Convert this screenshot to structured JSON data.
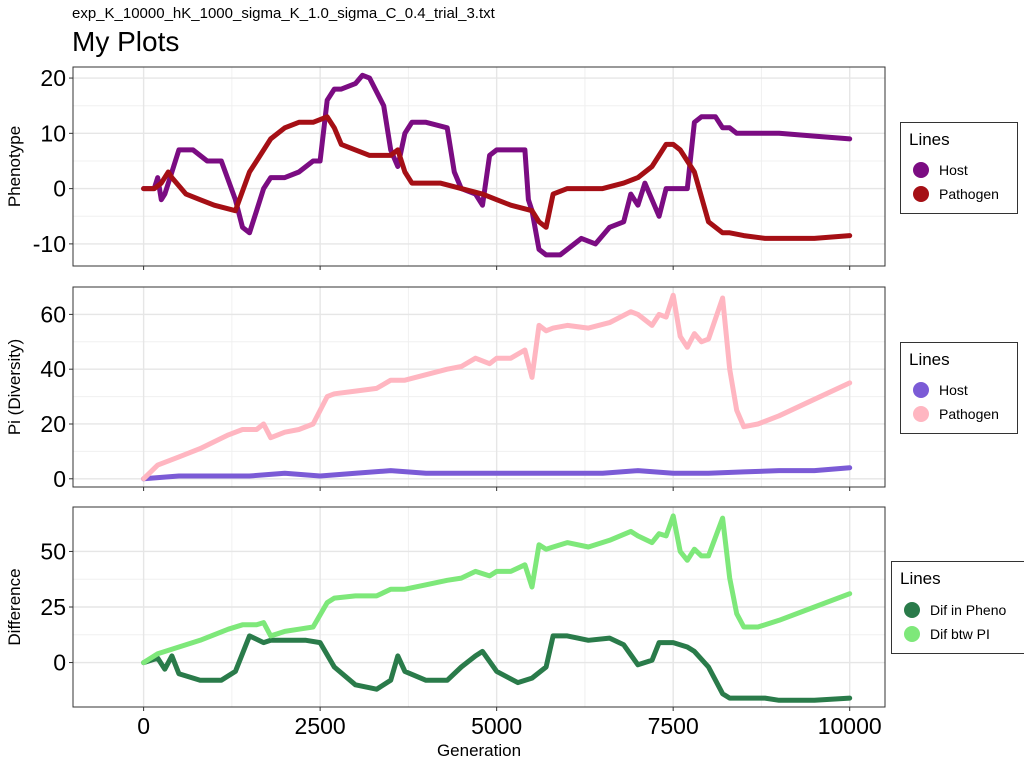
{
  "header": {
    "subtitle": "exp_K_10000_hK_1000_sigma_K_1.0_sigma_C_0.4_trial_3.txt",
    "title": "My Plots"
  },
  "chart_data": [
    {
      "type": "line",
      "ylabel": "Phenotype",
      "xlabel": "",
      "xlim": [
        -1000,
        10500
      ],
      "ylim": [
        -14,
        22
      ],
      "xticks": [
        0,
        2500,
        5000,
        7500,
        10000
      ],
      "yticks": [
        -10,
        0,
        10,
        20
      ],
      "ytick_labels": [
        "-10",
        "0",
        "10",
        "20"
      ],
      "show_x_labels": false,
      "grid": true,
      "legend": {
        "title": "Lines",
        "position": "right"
      },
      "series": [
        {
          "name": "Host",
          "color": "#7B0C82",
          "x": [
            0,
            150,
            200,
            250,
            300,
            400,
            500,
            700,
            900,
            1100,
            1300,
            1400,
            1500,
            1600,
            1700,
            1800,
            2000,
            2200,
            2400,
            2500,
            2600,
            2700,
            2800,
            3000,
            3100,
            3200,
            3400,
            3500,
            3600,
            3700,
            3800,
            4000,
            4300,
            4400,
            4500,
            4700,
            4800,
            4900,
            5000,
            5200,
            5400,
            5450,
            5500,
            5600,
            5700,
            5800,
            5900,
            6000,
            6200,
            6400,
            6600,
            6800,
            6900,
            7000,
            7100,
            7200,
            7300,
            7400,
            7500,
            7700,
            7800,
            7900,
            8100,
            8200,
            8300,
            8400,
            8600,
            8800,
            9000,
            9500,
            10000
          ],
          "y": [
            0,
            0,
            2,
            -2,
            -1,
            3,
            7,
            7,
            5,
            5,
            -2,
            -7,
            -8,
            -4,
            0,
            2,
            2,
            3,
            5,
            5,
            16,
            18,
            18,
            19,
            20.5,
            20,
            15,
            7,
            4,
            10,
            12,
            12,
            11,
            3,
            0,
            -1,
            -3,
            6,
            7,
            7,
            7,
            -2,
            -4,
            -11,
            -12,
            -12,
            -12,
            -11,
            -9,
            -10,
            -7,
            -6,
            -1,
            -3,
            1,
            -2,
            -5,
            0,
            0,
            0,
            12,
            13,
            13,
            11,
            11,
            10,
            10,
            10,
            10,
            9.5,
            9
          ]
        },
        {
          "name": "Pathogen",
          "color": "#A50F15",
          "x": [
            0,
            150,
            250,
            350,
            400,
            600,
            800,
            1000,
            1300,
            1500,
            1600,
            1800,
            2000,
            2200,
            2400,
            2600,
            2700,
            2800,
            3000,
            3200,
            3500,
            3600,
            3700,
            3800,
            4000,
            4200,
            4500,
            4800,
            5000,
            5200,
            5500,
            5600,
            5700,
            5800,
            6000,
            6200,
            6500,
            6800,
            7000,
            7200,
            7300,
            7400,
            7500,
            7600,
            7800,
            8000,
            8200,
            8300,
            8500,
            8800,
            9000,
            9500,
            10000
          ],
          "y": [
            0,
            0,
            1,
            3,
            2,
            -1,
            -2,
            -3,
            -4,
            3,
            5,
            9,
            11,
            12,
            12,
            13,
            11,
            8,
            7,
            6,
            6,
            7,
            3,
            1,
            1,
            1,
            0,
            -1,
            -2,
            -3,
            -4,
            -6,
            -7,
            -1,
            0,
            0,
            0,
            1,
            2,
            4,
            6,
            8,
            8,
            7,
            3,
            -6,
            -8,
            -8,
            -8.5,
            -9,
            -9,
            -9,
            -8.5
          ]
        }
      ]
    },
    {
      "type": "line",
      "ylabel": "Pi (Diversity)",
      "xlabel": "",
      "xlim": [
        -1000,
        10500
      ],
      "ylim": [
        -3,
        70
      ],
      "xticks": [
        0,
        2500,
        5000,
        7500,
        10000
      ],
      "yticks": [
        0,
        20,
        40,
        60
      ],
      "ytick_labels": [
        "0",
        "20",
        "40",
        "60"
      ],
      "show_x_labels": false,
      "grid": true,
      "legend": {
        "title": "Lines",
        "position": "right"
      },
      "series": [
        {
          "name": "Host",
          "color": "#7B5BD6",
          "x": [
            0,
            500,
            1000,
            1500,
            2000,
            2500,
            3000,
            3500,
            4000,
            4500,
            5000,
            5500,
            6000,
            6500,
            7000,
            7500,
            8000,
            8500,
            9000,
            9500,
            10000
          ],
          "y": [
            0,
            1,
            1,
            1,
            2,
            1,
            2,
            3,
            2,
            2,
            2,
            2,
            2,
            2,
            3,
            2,
            2,
            2.5,
            3,
            3,
            4
          ]
        },
        {
          "name": "Pathogen",
          "color": "#FFB6C1",
          "x": [
            0,
            200,
            500,
            800,
            1200,
            1400,
            1600,
            1700,
            1800,
            1900,
            2000,
            2200,
            2400,
            2600,
            2700,
            3000,
            3300,
            3500,
            3700,
            4000,
            4300,
            4500,
            4700,
            4900,
            5000,
            5200,
            5400,
            5500,
            5600,
            5700,
            5800,
            6000,
            6300,
            6600,
            6900,
            7000,
            7200,
            7300,
            7400,
            7500,
            7600,
            7700,
            7800,
            7900,
            8000,
            8200,
            8300,
            8400,
            8500,
            8700,
            9000,
            9500,
            10000
          ],
          "y": [
            0,
            5,
            8,
            11,
            16,
            18,
            18,
            20,
            15,
            16,
            17,
            18,
            20,
            30,
            31,
            32,
            33,
            36,
            36,
            38,
            40,
            41,
            44,
            42,
            44,
            44,
            47,
            37,
            56,
            54,
            55,
            56,
            55,
            57,
            61,
            60,
            56,
            60,
            59,
            67,
            52,
            48,
            53,
            50,
            51,
            66,
            40,
            25,
            19,
            20,
            23,
            29,
            35
          ]
        }
      ]
    },
    {
      "type": "line",
      "ylabel": "Difference",
      "xlabel": "Generation",
      "xlim": [
        -1000,
        10500
      ],
      "ylim": [
        -20,
        70
      ],
      "xticks": [
        0,
        2500,
        5000,
        7500,
        10000
      ],
      "xtick_labels": [
        "0",
        "2500",
        "5000",
        "7500",
        "10000"
      ],
      "yticks": [
        0,
        25,
        50
      ],
      "ytick_labels": [
        "0",
        "25",
        "50"
      ],
      "show_x_labels": true,
      "grid": true,
      "legend": {
        "title": "Lines",
        "position": "right"
      },
      "series": [
        {
          "name": "Dif in Pheno",
          "color": "#2A7B4A",
          "x": [
            0,
            200,
            300,
            400,
            500,
            800,
            1100,
            1300,
            1500,
            1700,
            1800,
            2000,
            2300,
            2500,
            2700,
            3000,
            3300,
            3500,
            3600,
            3700,
            4000,
            4300,
            4500,
            4700,
            4800,
            5000,
            5300,
            5500,
            5700,
            5800,
            6000,
            6300,
            6600,
            6800,
            7000,
            7200,
            7300,
            7500,
            7700,
            7800,
            8000,
            8200,
            8300,
            8500,
            8800,
            9000,
            9500,
            10000
          ],
          "y": [
            0,
            2,
            -3,
            3,
            -5,
            -8,
            -8,
            -4,
            12,
            9,
            10,
            10,
            10,
            9,
            -2,
            -10,
            -12,
            -8,
            3,
            -4,
            -8,
            -8,
            -2,
            3,
            5,
            -4,
            -9,
            -7,
            -2,
            12,
            12,
            10,
            11,
            8,
            -1,
            1,
            9,
            9,
            7,
            5,
            -2,
            -14,
            -16,
            -16,
            -16,
            -17,
            -17,
            -16
          ]
        },
        {
          "name": "Dif btw PI",
          "color": "#7EE87A",
          "x": [
            0,
            200,
            500,
            800,
            1200,
            1400,
            1600,
            1700,
            1800,
            1900,
            2000,
            2200,
            2400,
            2600,
            2700,
            3000,
            3300,
            3500,
            3700,
            4000,
            4300,
            4500,
            4700,
            4900,
            5000,
            5200,
            5400,
            5500,
            5600,
            5700,
            5800,
            6000,
            6300,
            6600,
            6900,
            7000,
            7200,
            7300,
            7400,
            7500,
            7600,
            7700,
            7800,
            7900,
            8000,
            8200,
            8300,
            8400,
            8500,
            8700,
            9000,
            9500,
            10000
          ],
          "y": [
            0,
            4,
            7,
            10,
            15,
            17,
            17,
            18,
            12,
            13,
            14,
            15,
            16,
            27,
            29,
            30,
            30,
            33,
            33,
            35,
            37,
            38,
            41,
            39,
            41,
            41,
            44,
            34,
            53,
            51,
            52,
            54,
            52,
            55,
            59,
            57,
            54,
            58,
            57,
            66,
            50,
            46,
            51,
            48,
            48,
            65,
            38,
            22,
            16,
            16,
            19,
            25,
            31
          ]
        }
      ]
    }
  ]
}
